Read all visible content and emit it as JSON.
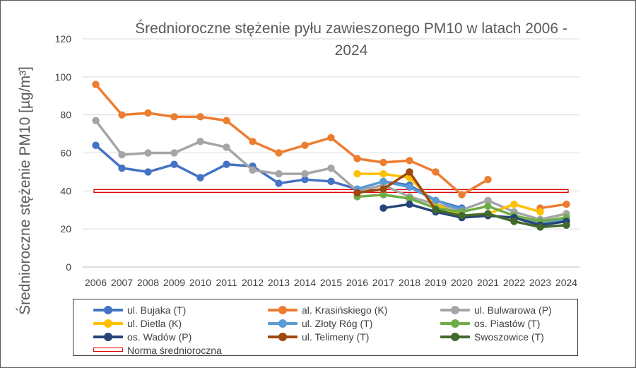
{
  "chart_data": {
    "type": "line",
    "title": "Średnioroczne stężenie pyłu zawieszonego PM10 w latach 2006 - 2024",
    "title_lines": [
      "Średnioroczne stężenie pyłu zawieszonego PM10 w latach 2006 -",
      "2024"
    ],
    "ylabel": "Średnioroczne stężenie PM10 [µg/m³]",
    "xlabel": "",
    "x": [
      "2006",
      "2007",
      "2008",
      "2009",
      "2010",
      "2011",
      "2012",
      "2013",
      "2014",
      "2015",
      "2016",
      "2017",
      "2018",
      "2019",
      "2020",
      "2021",
      "2022",
      "2023",
      "2024"
    ],
    "ylim": [
      0,
      120
    ],
    "yticks": [
      0,
      20,
      40,
      60,
      80,
      100,
      120
    ],
    "grid": "horizontal",
    "legend_position": "bottom",
    "series": [
      {
        "name": "ul. Bujaka (T)",
        "color": "#4472c4",
        "values": [
          64,
          52,
          50,
          54,
          47,
          54,
          53,
          44,
          46,
          45,
          41,
          45,
          43,
          35,
          31,
          null,
          null,
          null,
          null
        ]
      },
      {
        "name": "al. Krasińskiego (K)",
        "color": "#ed7d31",
        "values": [
          96,
          80,
          81,
          79,
          79,
          77,
          66,
          60,
          64,
          68,
          57,
          55,
          56,
          50,
          38,
          46,
          null,
          31,
          33
        ]
      },
      {
        "name": "ul. Bulwarowa (P)",
        "color": "#a5a5a5",
        "values": [
          77,
          59,
          60,
          60,
          66,
          63,
          51,
          49,
          49,
          52,
          40,
          43,
          37,
          33,
          30,
          35,
          29,
          25,
          28
        ]
      },
      {
        "name": "ul. Dietla (K)",
        "color": "#ffc000",
        "values": [
          null,
          null,
          null,
          null,
          null,
          null,
          null,
          null,
          null,
          null,
          49,
          49,
          47,
          33,
          27,
          28,
          33,
          29,
          null
        ]
      },
      {
        "name": "ul. Złoty Róg (T)",
        "color": "#5b9bd5",
        "values": [
          null,
          null,
          null,
          null,
          null,
          null,
          null,
          null,
          null,
          null,
          41,
          45,
          42,
          35,
          30,
          null,
          27,
          23,
          25
        ]
      },
      {
        "name": "os. Piastów (T)",
        "color": "#70ad47",
        "values": [
          null,
          null,
          null,
          null,
          null,
          null,
          null,
          null,
          null,
          null,
          37,
          38,
          36,
          31,
          29,
          32,
          27,
          24,
          26
        ]
      },
      {
        "name": "os. Wadów (P)",
        "color": "#264478",
        "values": [
          null,
          null,
          null,
          null,
          null,
          null,
          null,
          null,
          null,
          null,
          null,
          31,
          33,
          29,
          26,
          27,
          26,
          22,
          24
        ]
      },
      {
        "name": "ul. Telimeny (T)",
        "color": "#9e480e",
        "values": [
          null,
          null,
          null,
          null,
          null,
          null,
          null,
          null,
          null,
          null,
          39,
          41,
          50,
          30,
          null,
          null,
          null,
          null,
          null
        ]
      },
      {
        "name": "Swoszowice (T)",
        "color": "#43682b",
        "values": [
          null,
          null,
          null,
          null,
          null,
          null,
          null,
          null,
          null,
          null,
          null,
          null,
          null,
          30,
          27,
          28,
          24,
          21,
          22
        ]
      }
    ],
    "reference_line": {
      "name": "Norma średnioroczna",
      "value": 40,
      "color": "#e00000"
    }
  }
}
